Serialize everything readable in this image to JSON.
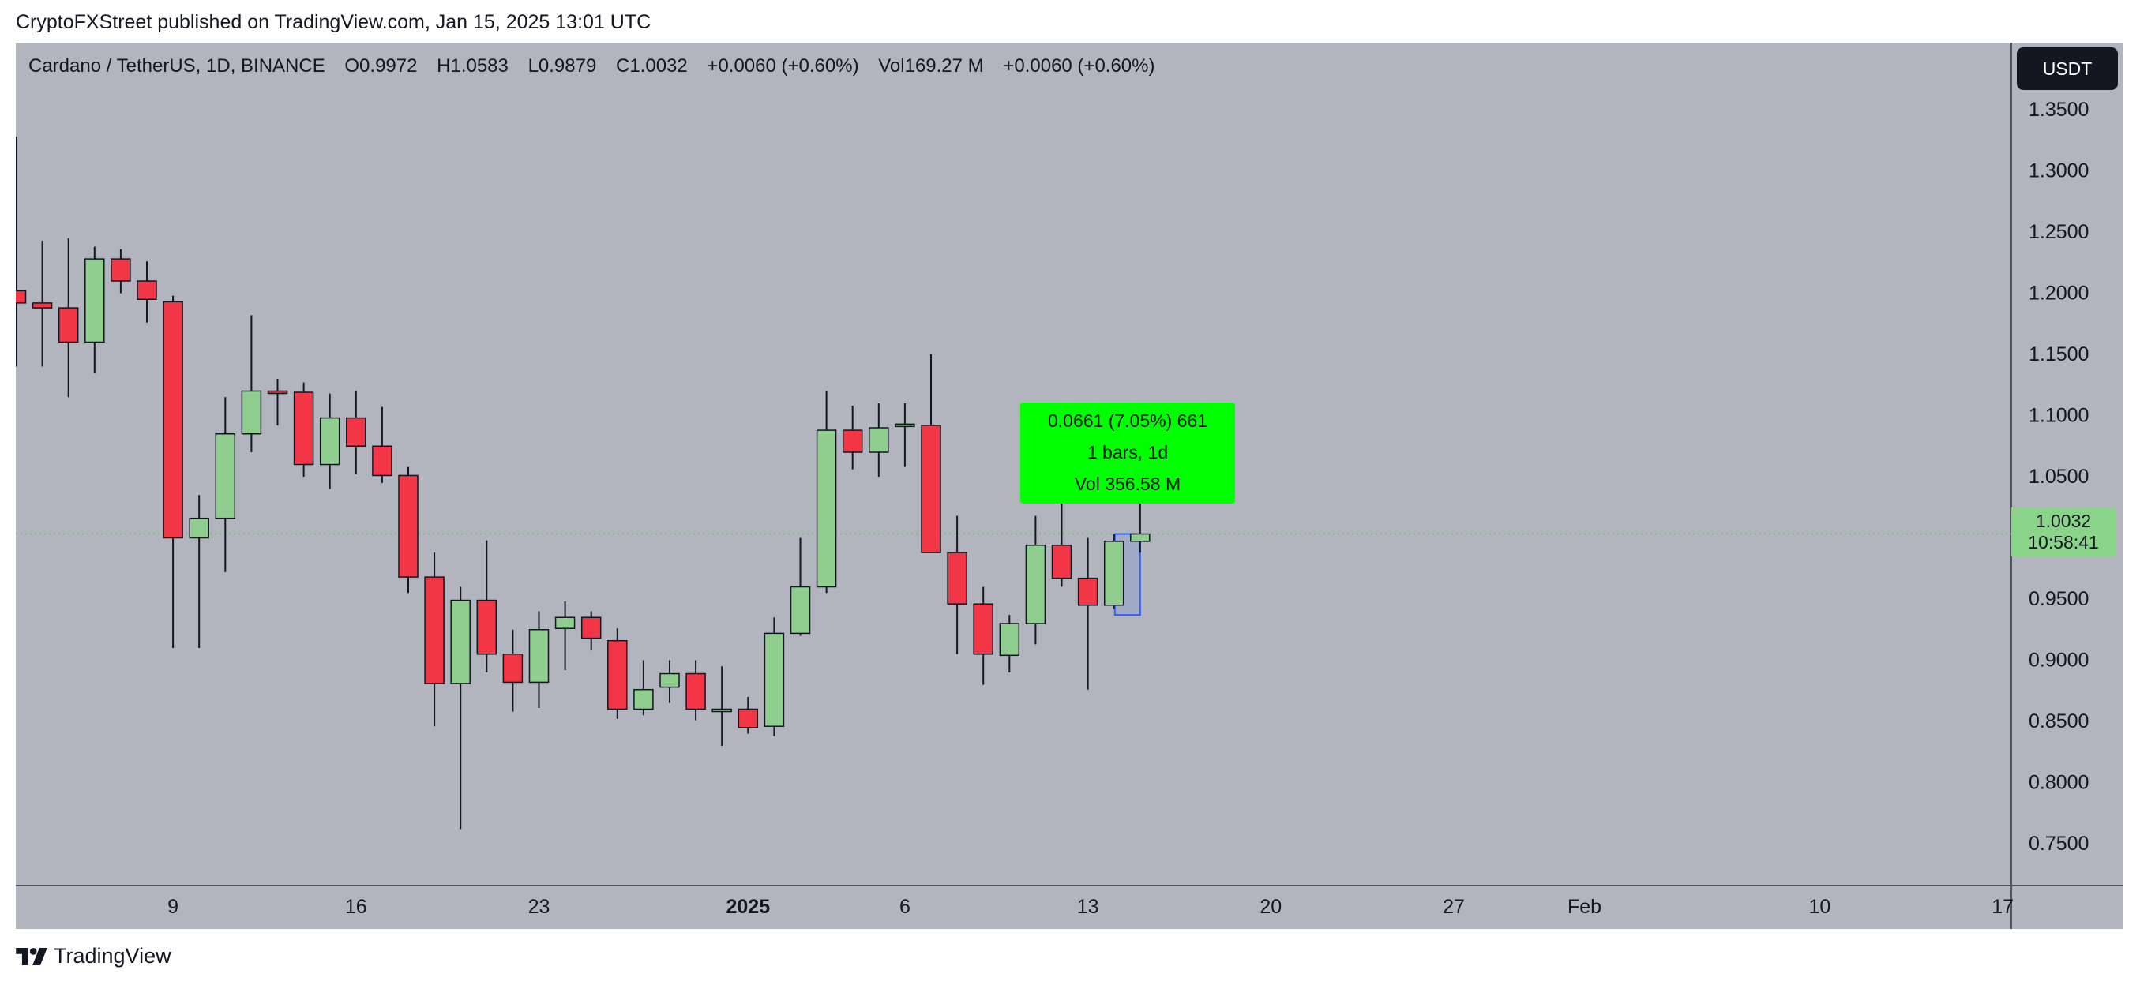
{
  "publisher_line": "CryptoFXStreet published on TradingView.com, Jan 15, 2025 13:01 UTC",
  "header": {
    "symbol": "Cardano / TetherUS, 1D, BINANCE",
    "open": "O0.9972",
    "high": "H1.0583",
    "low": "L0.9879",
    "close": "C1.0032",
    "change": "+0.0060 (+0.60%)",
    "volume": "Vol169.27 M",
    "volume_change": "+0.0060 (+0.60%)"
  },
  "currency_button": "USDT",
  "price_label": {
    "price": "1.0032",
    "countdown": "10:58:41"
  },
  "measure_tool": {
    "line1": "0.0661 (7.05%) 661",
    "line2": "1 bars, 1d",
    "line3": "Vol 356.58 M"
  },
  "footer_brand": "TradingView",
  "colors": {
    "background": "#b2b5be",
    "up": "#8fce8f",
    "down": "#f23645",
    "measure": "#00ff00",
    "price_tag": "#89d489",
    "highlight": "#2962ff"
  },
  "chart_data": {
    "type": "candlestick",
    "title": "Cardano / TetherUS, 1D, BINANCE",
    "ylim": [
      0.72,
      1.36
    ],
    "y_ticks": [
      "1.3500",
      "1.3000",
      "1.2500",
      "1.2000",
      "1.1500",
      "1.1000",
      "1.0500",
      "1.0000",
      "0.9500",
      "0.9000",
      "0.8500",
      "0.8000",
      "0.7500"
    ],
    "x_ticks": [
      {
        "label": "9",
        "slot": 6
      },
      {
        "label": "16",
        "slot": 13
      },
      {
        "label": "23",
        "slot": 20
      },
      {
        "label": "2025",
        "slot": 28,
        "bold": true
      },
      {
        "label": "6",
        "slot": 34
      },
      {
        "label": "13",
        "slot": 41
      },
      {
        "label": "20",
        "slot": 48
      },
      {
        "label": "27",
        "slot": 55
      },
      {
        "label": "Feb",
        "slot": 60
      },
      {
        "label": "10",
        "slot": 69
      },
      {
        "label": "17",
        "slot": 76
      }
    ],
    "candles": [
      {
        "o": 1.202,
        "h": 1.328,
        "l": 1.14,
        "c": 1.192
      },
      {
        "o": 1.192,
        "h": 1.243,
        "l": 1.14,
        "c": 1.188
      },
      {
        "o": 1.188,
        "h": 1.245,
        "l": 1.115,
        "c": 1.16
      },
      {
        "o": 1.16,
        "h": 1.238,
        "l": 1.135,
        "c": 1.228
      },
      {
        "o": 1.228,
        "h": 1.236,
        "l": 1.2,
        "c": 1.21
      },
      {
        "o": 1.21,
        "h": 1.226,
        "l": 1.176,
        "c": 1.195
      },
      {
        "o": 1.193,
        "h": 1.198,
        "l": 0.91,
        "c": 1.0
      },
      {
        "o": 1.0,
        "h": 1.035,
        "l": 0.91,
        "c": 1.016
      },
      {
        "o": 1.016,
        "h": 1.115,
        "l": 0.972,
        "c": 1.085
      },
      {
        "o": 1.085,
        "h": 1.182,
        "l": 1.07,
        "c": 1.12
      },
      {
        "o": 1.12,
        "h": 1.13,
        "l": 1.092,
        "c": 1.119
      },
      {
        "o": 1.119,
        "h": 1.127,
        "l": 1.05,
        "c": 1.06
      },
      {
        "o": 1.06,
        "h": 1.118,
        "l": 1.04,
        "c": 1.098
      },
      {
        "o": 1.098,
        "h": 1.12,
        "l": 1.052,
        "c": 1.075
      },
      {
        "o": 1.075,
        "h": 1.107,
        "l": 1.045,
        "c": 1.051
      },
      {
        "o": 1.051,
        "h": 1.058,
        "l": 0.955,
        "c": 0.968
      },
      {
        "o": 0.968,
        "h": 0.988,
        "l": 0.846,
        "c": 0.881
      },
      {
        "o": 0.881,
        "h": 0.96,
        "l": 0.762,
        "c": 0.949
      },
      {
        "o": 0.949,
        "h": 0.998,
        "l": 0.89,
        "c": 0.905
      },
      {
        "o": 0.905,
        "h": 0.925,
        "l": 0.858,
        "c": 0.882
      },
      {
        "o": 0.882,
        "h": 0.94,
        "l": 0.861,
        "c": 0.925
      },
      {
        "o": 0.926,
        "h": 0.948,
        "l": 0.892,
        "c": 0.935
      },
      {
        "o": 0.935,
        "h": 0.94,
        "l": 0.908,
        "c": 0.918
      },
      {
        "o": 0.916,
        "h": 0.926,
        "l": 0.852,
        "c": 0.86
      },
      {
        "o": 0.86,
        "h": 0.9,
        "l": 0.855,
        "c": 0.876
      },
      {
        "o": 0.878,
        "h": 0.9,
        "l": 0.865,
        "c": 0.889
      },
      {
        "o": 0.889,
        "h": 0.9,
        "l": 0.851,
        "c": 0.86
      },
      {
        "o": 0.86,
        "h": 0.895,
        "l": 0.83,
        "c": 0.86
      },
      {
        "o": 0.86,
        "h": 0.87,
        "l": 0.84,
        "c": 0.845
      },
      {
        "o": 0.846,
        "h": 0.935,
        "l": 0.838,
        "c": 0.922
      },
      {
        "o": 0.922,
        "h": 1.0,
        "l": 0.92,
        "c": 0.96
      },
      {
        "o": 0.96,
        "h": 1.12,
        "l": 0.955,
        "c": 1.088
      },
      {
        "o": 1.088,
        "h": 1.108,
        "l": 1.056,
        "c": 1.07
      },
      {
        "o": 1.07,
        "h": 1.11,
        "l": 1.05,
        "c": 1.09
      },
      {
        "o": 1.093,
        "h": 1.11,
        "l": 1.058,
        "c": 1.093
      },
      {
        "o": 1.092,
        "h": 1.15,
        "l": 0.99,
        "c": 0.988
      },
      {
        "o": 0.988,
        "h": 1.018,
        "l": 0.905,
        "c": 0.946
      },
      {
        "o": 0.946,
        "h": 0.96,
        "l": 0.88,
        "c": 0.905
      },
      {
        "o": 0.904,
        "h": 0.937,
        "l": 0.89,
        "c": 0.93
      },
      {
        "o": 0.93,
        "h": 1.018,
        "l": 0.913,
        "c": 0.994
      },
      {
        "o": 0.994,
        "h": 1.036,
        "l": 0.96,
        "c": 0.967
      },
      {
        "o": 0.967,
        "h": 1.0,
        "l": 0.876,
        "c": 0.945
      },
      {
        "o": 0.945,
        "h": 1.003,
        "l": 0.942,
        "c": 0.9972
      },
      {
        "o": 0.9972,
        "h": 1.0583,
        "l": 0.9879,
        "c": 1.0032
      }
    ]
  }
}
